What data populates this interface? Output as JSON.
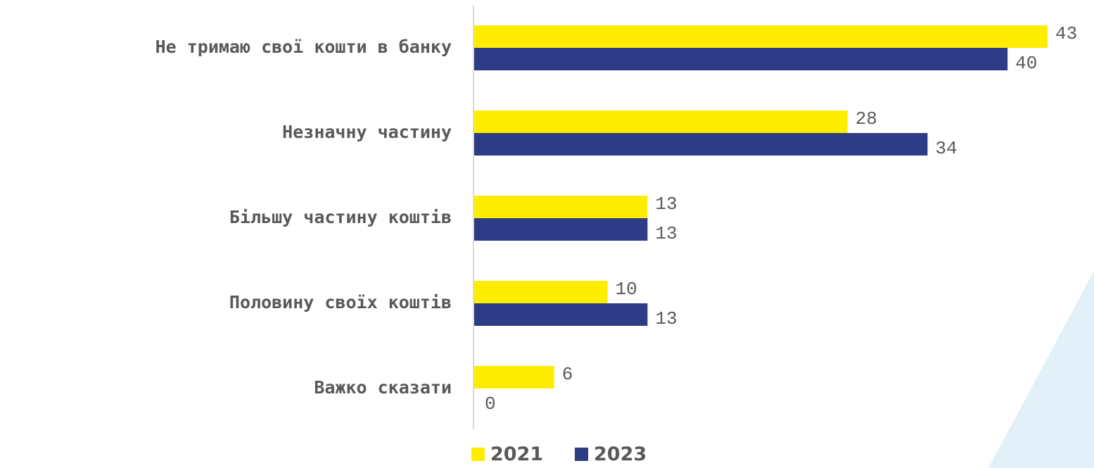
{
  "chart_data": {
    "type": "bar",
    "orientation": "horizontal",
    "title": "",
    "xlabel": "",
    "ylabel": "",
    "categories": [
      "Не тримаю свої кошти в банку",
      "Незначну частину",
      "Більшу частину коштів",
      "Половину своїх коштів",
      "Важко сказати"
    ],
    "series": [
      {
        "name": "2021",
        "color": "#FFED00",
        "values": [
          43,
          28,
          13,
          10,
          6
        ]
      },
      {
        "name": "2023",
        "color": "#2E3C86",
        "values": [
          40,
          34,
          13,
          13,
          0
        ]
      }
    ],
    "xlim": [
      0,
      43
    ],
    "grid": false,
    "legend": "bottom-center",
    "decoration_color": "#E1F0F9",
    "axis_color": "#D9D9D9"
  }
}
